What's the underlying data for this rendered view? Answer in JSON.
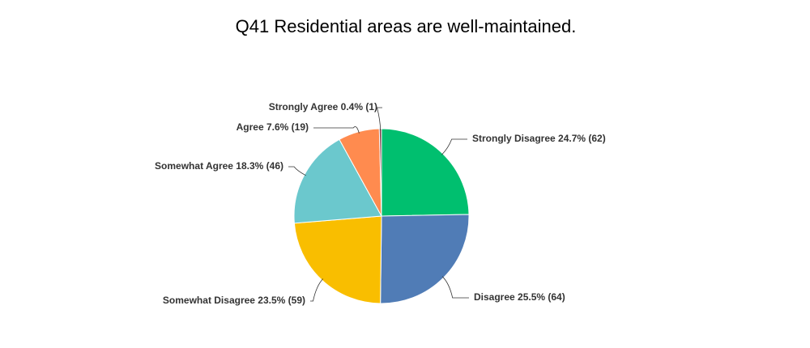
{
  "chart_data": {
    "type": "pie",
    "title": "Q41 Residential areas are well-maintained.",
    "values": [
      24.7,
      25.5,
      23.5,
      18.3,
      7.6,
      0.4
    ],
    "value_labels": [
      "Strongly Disagree 24.7% (62)",
      "Disagree 25.5% (64)",
      "Somewhat Disagree 23.5% (59)",
      "Somewhat Agree 18.3% (46)",
      "Agree 7.6% (19)",
      "Strongly Agree 0.4% (1)"
    ],
    "colors": [
      "#00bf6f",
      "#507cb6",
      "#f9be00",
      "#6bc8cd",
      "#ff8b4f",
      "#7d3c4a"
    ]
  }
}
